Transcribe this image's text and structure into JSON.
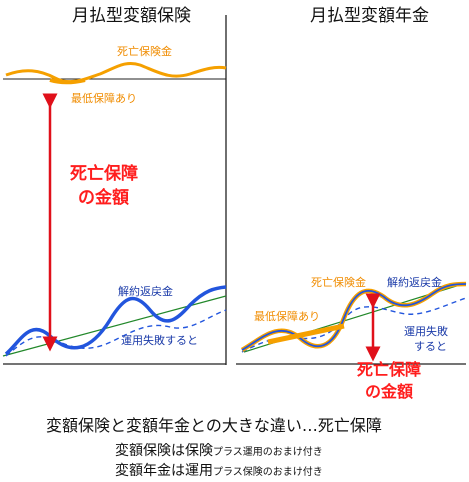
{
  "left_panel": {
    "title": "月払型変額保険",
    "death_benefit_label": "死亡保険金",
    "minimum_guarantee_label": "最低保障あり",
    "death_guarantee_amount_line1": "死亡保障",
    "death_guarantee_amount_line2": "の金額",
    "surrender_value_label": "解約返戻金",
    "investment_failure_label": "運用失敗すると"
  },
  "right_panel": {
    "title": "月払型変額年金",
    "death_benefit_label": "死亡保険金",
    "surrender_value_label": "解約返戻金",
    "minimum_guarantee_label": "最低保障あり",
    "investment_failure_line1": "運用失敗",
    "investment_failure_line2": "すると",
    "death_guarantee_amount_line1": "死亡保障",
    "death_guarantee_amount_line2": "の金額"
  },
  "summary": {
    "headline": "変額保険と変額年金との大きな違い…死亡保障",
    "line1_main": "変額保険は保険",
    "line1_small": "プラス運用のおまけ付き",
    "line2_main": "変額年金は運用",
    "line2_small": "プラス保険のおまけ付き"
  },
  "colors": {
    "death_benefit": "#f5a000",
    "surrender_value": "#2255dd",
    "guarantee_arrow": "#e0101a",
    "premium_line": "#22882a",
    "axis": "#222222"
  }
}
